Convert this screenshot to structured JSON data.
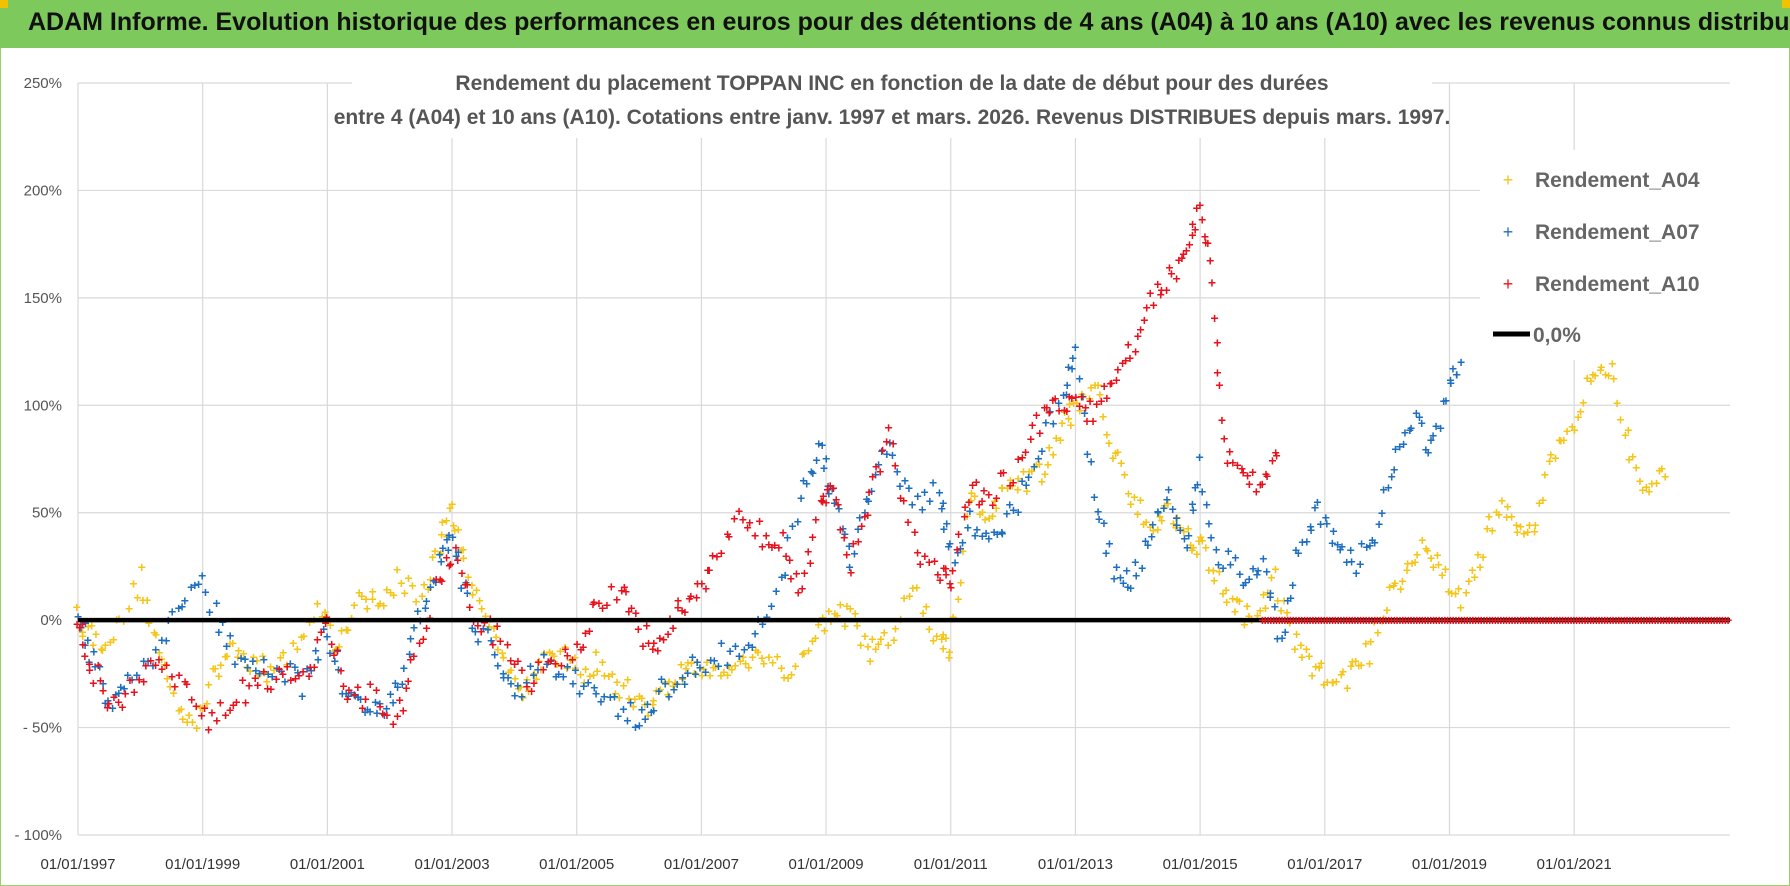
{
  "header": {
    "title": "ADAM Informe. Evolution historique des performances en euros pour des détentions de 4 ans (A04) à 10 ans (A10) avec les revenus connus distribués"
  },
  "colors": {
    "banner": "#7ec95c",
    "a04": "#f5c518",
    "a07": "#1f6fc0",
    "a10": "#e8121c",
    "zero": "#000000",
    "grid": "#d9d9d9"
  },
  "chart_data": {
    "type": "scatter",
    "title_line1": "Rendement du placement TOPPAN INC en fonction de la date de début pour des durées",
    "title_line2": "entre 4 (A04) et 10 ans (A10). Cotations entre janv. 1997 et mars. 2026. Revenus DISTRIBUES depuis mars. 1997.",
    "ylim": [
      -100,
      250
    ],
    "y_ticks": [
      "250%",
      "200%",
      "150%",
      "100%",
      "50%",
      "0%",
      "- 50%",
      "- 100%"
    ],
    "y_tick_values": [
      250,
      200,
      150,
      100,
      50,
      0,
      -50,
      -100
    ],
    "xlim": [
      1997.0,
      2023.5
    ],
    "x_ticks": [
      "01/01/1997",
      "01/01/1999",
      "01/01/2001",
      "01/01/2003",
      "01/01/2005",
      "01/01/2007",
      "01/01/2009",
      "01/01/2011",
      "01/01/2013",
      "01/01/2015",
      "01/01/2017",
      "01/01/2019",
      "01/01/2021"
    ],
    "x_tick_values": [
      1997,
      1999,
      2001,
      2003,
      2005,
      2007,
      2009,
      2011,
      2013,
      2015,
      2017,
      2019,
      2021
    ],
    "legend": [
      "Rendement_A04",
      "Rendement_A07",
      "Rendement_A10",
      "0,0%"
    ],
    "series": [
      {
        "name": "Rendement_A04",
        "x": [
          1997.0,
          1997.3,
          1997.6,
          1998.0,
          1998.3,
          1998.6,
          1998.9,
          1999.2,
          1999.5,
          1999.8,
          2000.1,
          2000.5,
          2000.9,
          2001.2,
          2001.5,
          2001.8,
          2002.1,
          2002.5,
          2002.8,
          2003.0,
          2003.2,
          2003.5,
          2003.8,
          2004.1,
          2004.4,
          2004.7,
          2005.0,
          2005.3,
          2005.6,
          2005.9,
          2006.2,
          2006.5,
          2006.8,
          2007.1,
          2007.4,
          2007.7,
          2008.0,
          2008.4,
          2008.8,
          2009.1,
          2009.4,
          2009.7,
          2010.0,
          2010.4,
          2010.8,
          2011.0,
          2011.3,
          2011.6,
          2011.9,
          2012.2,
          2012.5,
          2012.8,
          2013.0,
          2013.3,
          2013.6,
          2013.9,
          2014.2,
          2014.5,
          2014.8,
          2015.0,
          2015.3,
          2015.6,
          2015.9,
          2016.2,
          2016.5,
          2016.8,
          2017.1,
          2017.4,
          2017.7,
          2018.0,
          2018.3,
          2018.6,
          2018.9,
          2019.2,
          2019.5,
          2019.8,
          2020.1,
          2020.4,
          2020.7,
          2021.0,
          2021.3,
          2021.6,
          2021.9,
          2022.2,
          2022.5
        ],
        "values": [
          2,
          -10,
          -5,
          20,
          -15,
          -40,
          -45,
          -25,
          -10,
          -20,
          -25,
          -10,
          5,
          -15,
          15,
          5,
          20,
          10,
          35,
          50,
          30,
          0,
          -10,
          -35,
          -20,
          -15,
          -25,
          -20,
          -30,
          -35,
          -40,
          -30,
          -20,
          -25,
          -20,
          -20,
          -15,
          -25,
          -10,
          5,
          0,
          -15,
          -10,
          15,
          -10,
          -15,
          55,
          50,
          60,
          65,
          70,
          90,
          100,
          110,
          80,
          60,
          45,
          50,
          40,
          35,
          20,
          5,
          0,
          20,
          -10,
          -20,
          -30,
          -25,
          -15,
          10,
          25,
          35,
          20,
          10,
          30,
          55,
          40,
          45,
          80,
          90,
          120,
          115,
          80,
          60,
          70
        ]
      },
      {
        "name": "Rendement_A07",
        "x": [
          1997.0,
          1997.2,
          1997.5,
          1997.8,
          1998.2,
          1998.6,
          1999.0,
          1999.4,
          1999.8,
          2000.2,
          2000.6,
          2001.0,
          2001.3,
          2001.6,
          2001.9,
          2002.2,
          2002.5,
          2002.8,
          2003.0,
          2003.3,
          2003.7,
          2004.0,
          2004.4,
          2004.8,
          2005.2,
          2005.6,
          2006.0,
          2006.3,
          2006.7,
          2007.0,
          2007.4,
          2007.8,
          2008.2,
          2008.6,
          2008.9,
          2009.1,
          2009.4,
          2009.7,
          2010.0,
          2010.4,
          2010.8,
          2011.0,
          2011.3,
          2011.7,
          2012.0,
          2012.4,
          2012.8,
          2013.0,
          2013.3,
          2013.6,
          2013.9,
          2014.2,
          2014.5,
          2014.8,
          2015.0,
          2015.3,
          2015.7,
          2016.0,
          2016.3,
          2016.6,
          2016.9,
          2017.2,
          2017.5,
          2017.8,
          2018.1,
          2018.4,
          2018.7,
          2019.0,
          2019.2
        ],
        "values": [
          5,
          -15,
          -40,
          -25,
          -20,
          5,
          15,
          -10,
          -25,
          -20,
          -30,
          -5,
          -35,
          -40,
          -45,
          -25,
          5,
          25,
          40,
          0,
          -15,
          -35,
          -20,
          -25,
          -30,
          -40,
          -45,
          -35,
          -25,
          -20,
          -15,
          -10,
          10,
          60,
          80,
          60,
          25,
          60,
          80,
          55,
          60,
          30,
          45,
          40,
          50,
          80,
          105,
          125,
          60,
          25,
          20,
          40,
          55,
          35,
          70,
          30,
          20,
          25,
          -10,
          35,
          50,
          35,
          25,
          40,
          70,
          95,
          80,
          110,
          120
        ]
      },
      {
        "name": "Rendement_A10",
        "x": [
          1997.0,
          1997.2,
          1997.5,
          1997.9,
          1998.3,
          1998.7,
          1999.1,
          1999.5,
          1999.9,
          2000.3,
          2000.7,
          2001.0,
          2001.3,
          2001.7,
          2002.1,
          2002.4,
          2002.8,
          2003.1,
          2003.4,
          2003.8,
          2004.2,
          2004.6,
          2005.0,
          2005.3,
          2005.7,
          2006.0,
          2006.3,
          2006.6,
          2006.9,
          2007.2,
          2007.6,
          2008.0,
          2008.3,
          2008.6,
          2008.9,
          2009.1,
          2009.4,
          2009.7,
          2010.0,
          2010.4,
          2010.8,
          2011.0,
          2011.3,
          2011.6,
          2012.0,
          2012.4,
          2012.7,
          2013.0,
          2013.3,
          2013.6,
          2013.9,
          2014.2,
          2014.5,
          2014.8,
          2015.0,
          2015.2,
          2015.4,
          2015.7,
          2016.0,
          2016.3
        ],
        "values": [
          0,
          -20,
          -40,
          -30,
          -20,
          -30,
          -45,
          -35,
          -30,
          -25,
          -30,
          0,
          -35,
          -35,
          -45,
          -20,
          20,
          30,
          0,
          -10,
          -30,
          -20,
          -15,
          5,
          15,
          -5,
          -15,
          5,
          10,
          30,
          45,
          40,
          35,
          15,
          50,
          65,
          25,
          60,
          90,
          35,
          25,
          15,
          60,
          55,
          70,
          90,
          100,
          105,
          95,
          115,
          125,
          150,
          160,
          175,
          190,
          160,
          80,
          70,
          60,
          85
        ]
      },
      {
        "name": "0,0%",
        "x": [
          1997.0,
          2023.5
        ],
        "values": [
          0,
          0
        ]
      }
    ],
    "a10_zero_from": 2016.0
  }
}
